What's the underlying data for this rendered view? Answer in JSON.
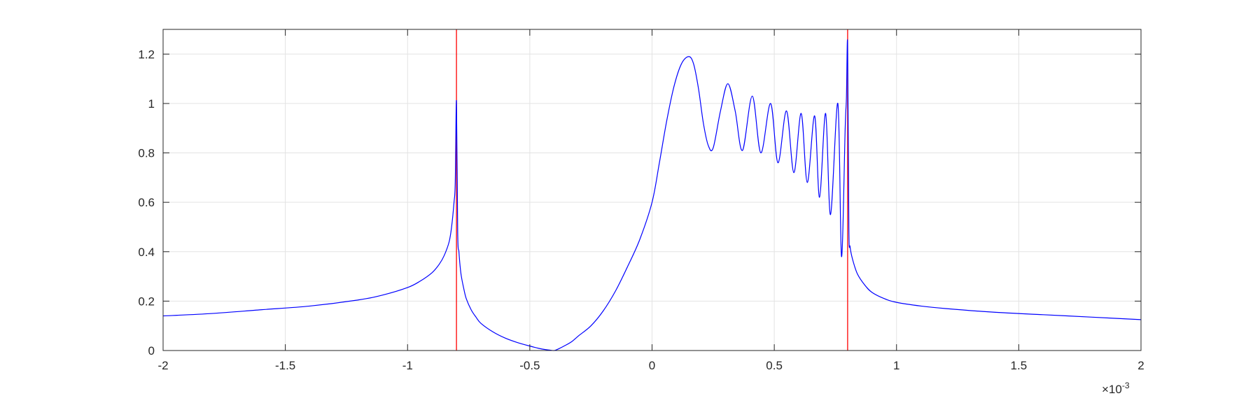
{
  "chart_data": {
    "type": "line",
    "xlim": [
      -2,
      2
    ],
    "ylim": [
      0,
      1.3
    ],
    "x_unit_exponent": "×10",
    "x_unit_exponent_power": "-3",
    "grid": true,
    "x_ticks": [
      -2,
      -1.5,
      -1,
      -0.5,
      0,
      0.5,
      1,
      1.5,
      2
    ],
    "x_tick_labels": [
      "-2",
      "-1.5",
      "-1",
      "-0.5",
      "0",
      "0.5",
      "1",
      "1.5",
      "2"
    ],
    "y_ticks": [
      0,
      0.2,
      0.4,
      0.6,
      0.8,
      1,
      1.2
    ],
    "y_tick_labels": [
      "0",
      "0.2",
      "0.4",
      "0.6",
      "0.8",
      "1",
      "1.2"
    ],
    "vertical_lines": [
      {
        "x": -0.8,
        "color": "#ff0000"
      },
      {
        "x": 0.8,
        "color": "#ff0000"
      }
    ],
    "series": [
      {
        "color": "#0000ff",
        "x": [
          -2.0,
          -1.8,
          -1.6,
          -1.4,
          -1.2,
          -1.1,
          -1.0,
          -0.95,
          -0.9,
          -0.87,
          -0.85,
          -0.83,
          -0.82,
          -0.81,
          -0.805,
          -0.8,
          -0.795,
          -0.79,
          -0.785,
          -0.78,
          -0.77,
          -0.76,
          -0.74,
          -0.72,
          -0.7,
          -0.65,
          -0.6,
          -0.55,
          -0.5,
          -0.45,
          -0.42,
          -0.4,
          -0.38,
          -0.36,
          -0.33,
          -0.3,
          -0.25,
          -0.2,
          -0.15,
          -0.1,
          -0.05,
          0.0,
          0.03,
          0.06,
          0.09,
          0.12,
          0.15,
          0.17,
          0.19,
          0.21,
          0.23,
          0.25,
          0.28,
          0.31,
          0.34,
          0.37,
          0.41,
          0.445,
          0.485,
          0.515,
          0.55,
          0.58,
          0.61,
          0.635,
          0.665,
          0.685,
          0.71,
          0.73,
          0.76,
          0.775,
          0.79,
          0.795,
          0.8,
          0.805,
          0.81,
          0.82,
          0.84,
          0.87,
          0.9,
          0.95,
          1.0,
          1.1,
          1.2,
          1.4,
          1.6,
          1.8,
          2.0
        ],
        "y": [
          0.14,
          0.15,
          0.165,
          0.18,
          0.205,
          0.225,
          0.255,
          0.28,
          0.315,
          0.35,
          0.385,
          0.44,
          0.5,
          0.6,
          0.68,
          1.01,
          0.48,
          0.4,
          0.34,
          0.3,
          0.25,
          0.21,
          0.165,
          0.135,
          0.11,
          0.075,
          0.05,
          0.032,
          0.018,
          0.006,
          0.002,
          0.0,
          0.008,
          0.018,
          0.035,
          0.06,
          0.1,
          0.16,
          0.24,
          0.34,
          0.45,
          0.6,
          0.76,
          0.93,
          1.07,
          1.16,
          1.19,
          1.16,
          1.06,
          0.92,
          0.83,
          0.82,
          0.97,
          1.08,
          0.97,
          0.81,
          1.03,
          0.8,
          1.0,
          0.76,
          0.97,
          0.72,
          0.96,
          0.68,
          0.95,
          0.62,
          0.96,
          0.55,
          1.0,
          0.38,
          0.9,
          1.02,
          1.24,
          0.5,
          0.42,
          0.37,
          0.31,
          0.265,
          0.235,
          0.21,
          0.195,
          0.18,
          0.17,
          0.155,
          0.145,
          0.135,
          0.125
        ]
      }
    ]
  }
}
